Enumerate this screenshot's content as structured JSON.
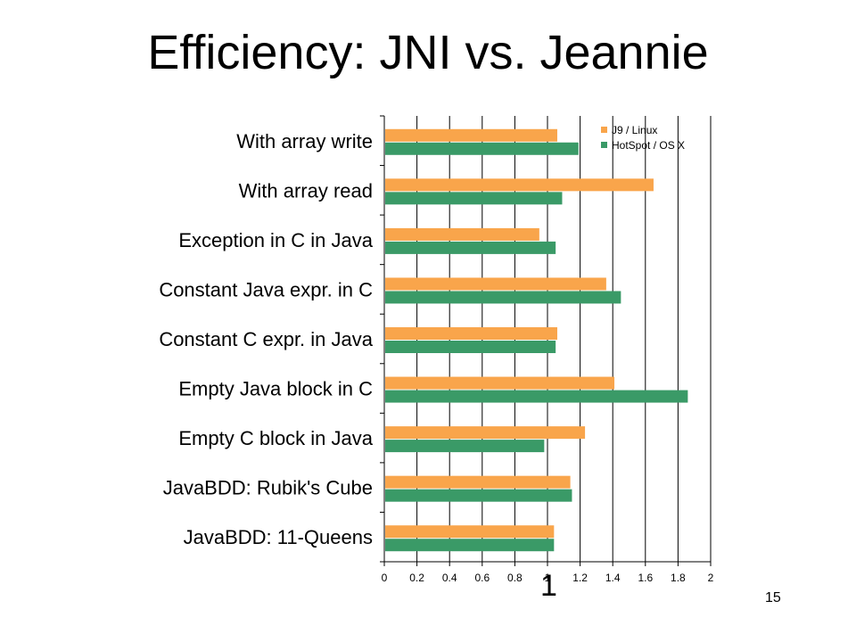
{
  "slide": {
    "title": "Efficiency: JNI vs. Jeannie",
    "annotation": "1",
    "number": "15"
  },
  "colors": {
    "j9": "#f9a54b",
    "hotspot": "#3a9a67",
    "axis": "#000000",
    "grid": "#000000"
  },
  "chart_data": {
    "type": "bar",
    "orientation": "horizontal",
    "categories": [
      "With array write",
      "With array read",
      "Exception in C in Java",
      "Constant Java expr. in C",
      "Constant C expr. in Java",
      "Empty Java block in C",
      "Empty C block in Java",
      "JavaBDD: Rubik's Cube",
      "JavaBDD: 11-Queens"
    ],
    "series": [
      {
        "name": "J9 / Linux",
        "values": [
          1.06,
          1.65,
          0.95,
          1.36,
          1.06,
          1.41,
          1.23,
          1.14,
          1.04
        ]
      },
      {
        "name": "HotSpot / OS X",
        "values": [
          1.19,
          1.09,
          1.05,
          1.45,
          1.05,
          1.86,
          0.98,
          1.15,
          1.04
        ]
      }
    ],
    "xlim": [
      0,
      2
    ],
    "xticks": [
      "0",
      "0.2",
      "0.4",
      "0.6",
      "0.8",
      "1",
      "1.2",
      "1.4",
      "1.6",
      "1.8",
      "2"
    ],
    "grid": "vertical",
    "legend": "top-right"
  }
}
